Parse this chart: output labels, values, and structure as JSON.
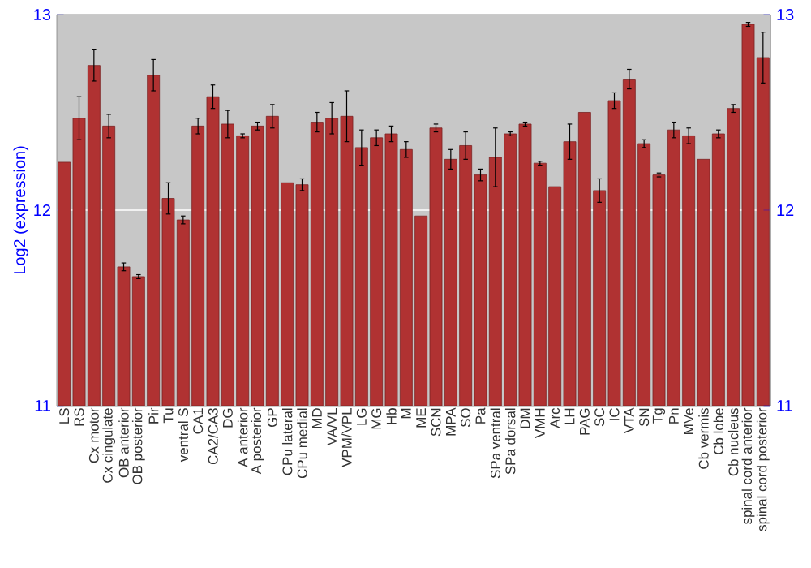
{
  "chart_data": {
    "type": "bar",
    "ylabel": "Log2 (expression)",
    "categories": [
      "LS",
      "RS",
      "Cx motor",
      "Cx cingulate",
      "OB anterior",
      "OB posterior",
      "Pir",
      "Tu",
      "ventral S",
      "CA1",
      "CA2/CA3",
      "DG",
      "A anterior",
      "A posterior",
      "GP",
      "CPu lateral",
      "CPu medial",
      "MD",
      "VA/VL",
      "VPM/VPL",
      "LG",
      "MG",
      "Hb",
      "M",
      "ME",
      "SCN",
      "MPA",
      "SO",
      "Pa",
      "SPa ventral",
      "SPa dorsal",
      "DM",
      "VMH",
      "Arc",
      "LH",
      "PAG",
      "SC",
      "IC",
      "VTA",
      "SN",
      "Tg",
      "Pn",
      "MVe",
      "Cb vermis",
      "Cb lobe",
      "Cb nucleus",
      "spinal cord anterior",
      "spinal cord posterior"
    ],
    "values": [
      12.245,
      12.47,
      12.74,
      12.43,
      11.71,
      11.66,
      12.69,
      12.06,
      11.95,
      12.43,
      12.58,
      12.44,
      12.38,
      12.43,
      12.48,
      12.14,
      12.13,
      12.45,
      12.47,
      12.48,
      12.32,
      12.37,
      12.39,
      12.31,
      11.97,
      12.42,
      12.26,
      12.33,
      12.18,
      12.27,
      12.39,
      12.44,
      12.24,
      12.12,
      12.35,
      12.5,
      12.1,
      12.56,
      12.67,
      12.34,
      12.18,
      12.41,
      12.38,
      12.26,
      12.39,
      12.52,
      12.95,
      12.78
    ],
    "errors": [
      null,
      0.11,
      0.08,
      0.06,
      0.02,
      0.01,
      0.08,
      0.08,
      0.02,
      0.04,
      0.06,
      0.07,
      0.01,
      0.02,
      0.06,
      null,
      0.03,
      0.05,
      0.08,
      0.13,
      0.09,
      0.04,
      0.04,
      0.04,
      null,
      0.02,
      0.05,
      0.07,
      0.03,
      0.15,
      0.01,
      0.01,
      0.01,
      null,
      0.09,
      null,
      0.06,
      0.04,
      0.05,
      0.02,
      0.01,
      0.04,
      0.04,
      null,
      0.02,
      0.02,
      0.01,
      0.13
    ],
    "color": "#b03232",
    "ylim": [
      11,
      13
    ],
    "yticks": [
      11,
      12,
      13
    ],
    "y2lim": [
      11,
      13
    ],
    "y2ticks": [
      11,
      12,
      13
    ],
    "grid": "y"
  }
}
